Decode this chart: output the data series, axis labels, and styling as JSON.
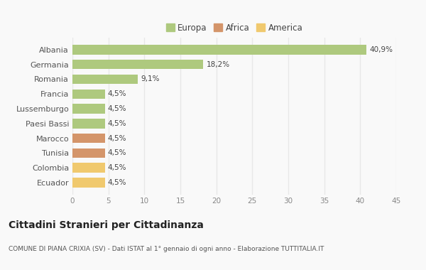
{
  "categories": [
    "Albania",
    "Germania",
    "Romania",
    "Francia",
    "Lussemburgo",
    "Paesi Bassi",
    "Marocco",
    "Tunisia",
    "Colombia",
    "Ecuador"
  ],
  "values": [
    40.9,
    18.2,
    9.1,
    4.5,
    4.5,
    4.5,
    4.5,
    4.5,
    4.5,
    4.5
  ],
  "labels": [
    "40,9%",
    "18,2%",
    "9,1%",
    "4,5%",
    "4,5%",
    "4,5%",
    "4,5%",
    "4,5%",
    "4,5%",
    "4,5%"
  ],
  "colors": [
    "#aec97e",
    "#aec97e",
    "#aec97e",
    "#aec97e",
    "#aec97e",
    "#aec97e",
    "#d4956a",
    "#d4956a",
    "#f0c96e",
    "#f0c96e"
  ],
  "legend_labels": [
    "Europa",
    "Africa",
    "America"
  ],
  "legend_colors": [
    "#aec97e",
    "#d4956a",
    "#f0c96e"
  ],
  "title": "Cittadini Stranieri per Cittadinanza",
  "subtitle": "COMUNE DI PIANA CRIXIA (SV) - Dati ISTAT al 1° gennaio di ogni anno - Elaborazione TUTTITALIA.IT",
  "xlim": [
    0,
    45
  ],
  "xticks": [
    0,
    5,
    10,
    15,
    20,
    25,
    30,
    35,
    40,
    45
  ],
  "background_color": "#f9f9f9",
  "grid_color": "#e8e8e8",
  "bar_height": 0.65
}
